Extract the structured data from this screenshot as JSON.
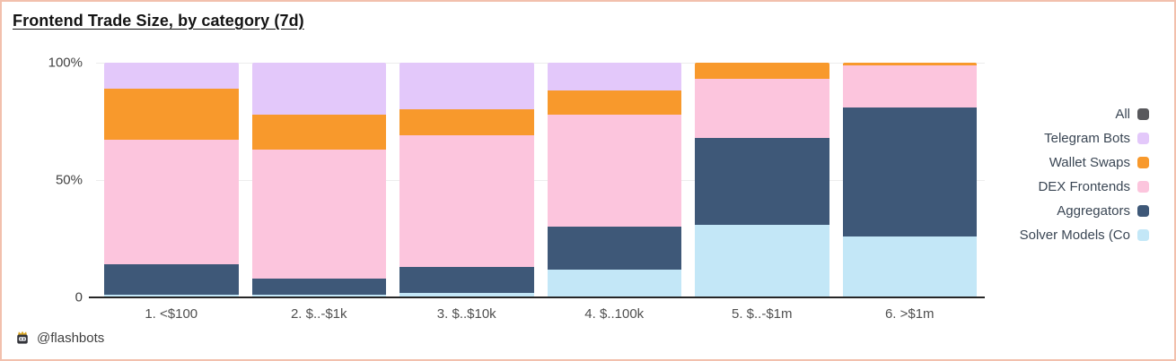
{
  "title": "Frontend Trade Size, by category (7d)",
  "footer": {
    "handle": "@flashbots",
    "icon": "flashbots-robot-crown-icon"
  },
  "colors": {
    "card_border": "#f2c0ad",
    "axis_line": "#262626",
    "gridline": "#ededed",
    "tick_text": "#424242",
    "legend_text": "#3a4654",
    "title_text": "#141414"
  },
  "chart_data": {
    "type": "bar",
    "stacked": true,
    "units": "percent",
    "title": "Frontend Trade Size, by category (7d)",
    "xlabel": "",
    "ylabel": "",
    "ylim": [
      0,
      100
    ],
    "grid": "faint-horizontal-at-50-and-100",
    "legend_position": "right",
    "categories": [
      "1. <$100",
      "2. $..-$1k",
      "3. $..$10k",
      "4. $..100k",
      "5. $..-$1m",
      "6. >$1m"
    ],
    "series": [
      {
        "name": "Solver Models (Co",
        "color": "#c3e7f7",
        "values": [
          1,
          1,
          2,
          12,
          31,
          26
        ]
      },
      {
        "name": "Aggregators",
        "color": "#3e5878",
        "values": [
          13,
          7,
          11,
          18,
          37,
          55
        ]
      },
      {
        "name": "DEX Frontends",
        "color": "#fcc5dd",
        "values": [
          53,
          55,
          56,
          48,
          25,
          18
        ]
      },
      {
        "name": "Wallet Swaps",
        "color": "#f8992c",
        "values": [
          22,
          15,
          11,
          10,
          7,
          1
        ]
      },
      {
        "name": "Telegram Bots",
        "color": "#e3c8fa",
        "values": [
          11,
          22,
          20,
          12,
          0,
          0
        ]
      }
    ],
    "legend": [
      {
        "label": "All",
        "color": "#58585c"
      },
      {
        "label": "Telegram Bots",
        "color": "#e3c8fa"
      },
      {
        "label": "Wallet Swaps",
        "color": "#f8992c"
      },
      {
        "label": "DEX Frontends",
        "color": "#fcc5dd"
      },
      {
        "label": "Aggregators",
        "color": "#3e5878"
      },
      {
        "label": "Solver Models (Co",
        "color": "#c3e7f7"
      }
    ],
    "yticks": [
      {
        "label": "100%",
        "value": 100
      },
      {
        "label": "50%",
        "value": 50
      },
      {
        "label": "0",
        "value": 0
      }
    ]
  }
}
